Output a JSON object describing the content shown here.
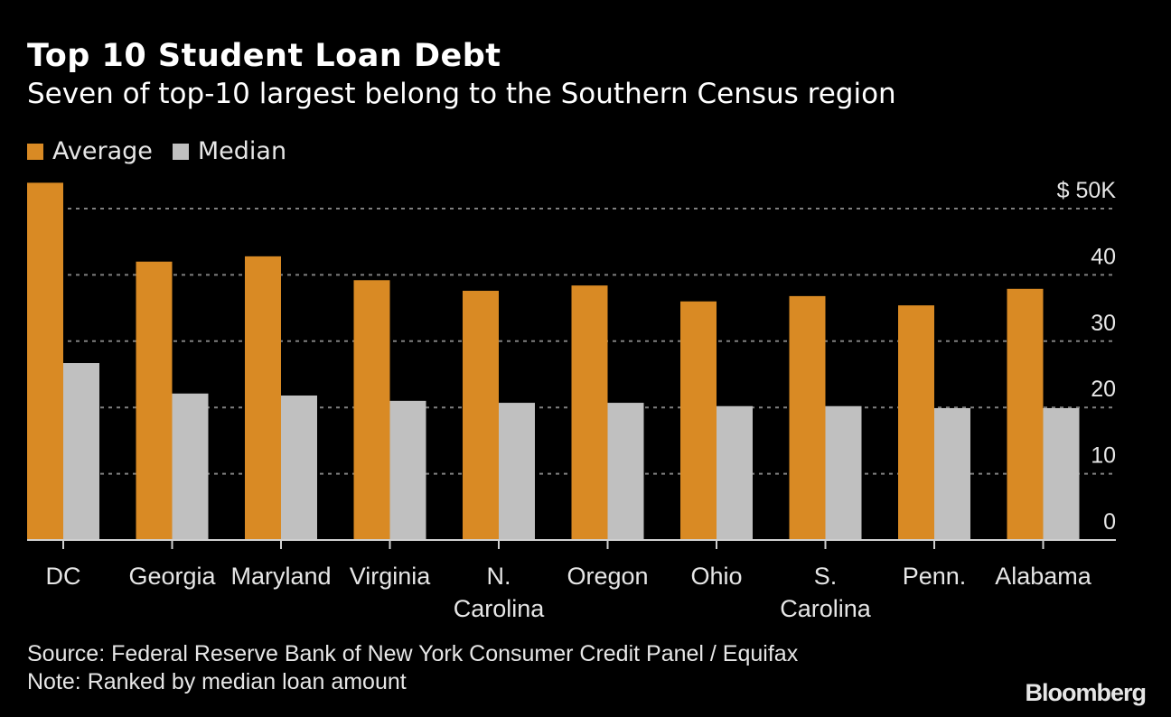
{
  "header": {
    "title": "Top 10 Student Loan Debt",
    "subtitle": "Seven of top-10 largest belong to the Southern Census region"
  },
  "footer": {
    "source": "Source: Federal Reserve Bank of New York Consumer Credit Panel / Equifax",
    "note": "Note: Ranked by median loan amount",
    "logo": "Bloomberg"
  },
  "colors": {
    "average": "#d98a24",
    "median": "#c0c0c0",
    "background": "#000000",
    "grid": "#808080"
  },
  "chart_data": {
    "type": "bar",
    "title": "Top 10 Student Loan Debt",
    "subtitle": "Seven of top-10 largest belong to the Southern Census region",
    "xlabel": "",
    "ylabel": "",
    "ylim": [
      0,
      50
    ],
    "y_unit_label": "$ 50K",
    "y_ticks": [
      0,
      10,
      20,
      30,
      40,
      50
    ],
    "y_tick_labels": [
      "0",
      "10",
      "20",
      "30",
      "40",
      "$ 50K"
    ],
    "grid": true,
    "legend_position": "top-left",
    "categories": [
      [
        "DC"
      ],
      [
        "Georgia"
      ],
      [
        "Maryland"
      ],
      [
        "Virginia"
      ],
      [
        "N.",
        "Carolina"
      ],
      [
        "Oregon"
      ],
      [
        "Ohio"
      ],
      [
        "S.",
        "Carolina"
      ],
      [
        "Penn."
      ],
      [
        "Alabama"
      ]
    ],
    "series": [
      {
        "name": "Average",
        "values": [
          53.9,
          42.0,
          42.8,
          39.2,
          37.6,
          38.4,
          36.0,
          36.8,
          35.4,
          37.9
        ]
      },
      {
        "name": "Median",
        "values": [
          26.7,
          22.1,
          21.8,
          21.0,
          20.7,
          20.7,
          20.2,
          20.2,
          19.9,
          19.9
        ]
      }
    ]
  }
}
